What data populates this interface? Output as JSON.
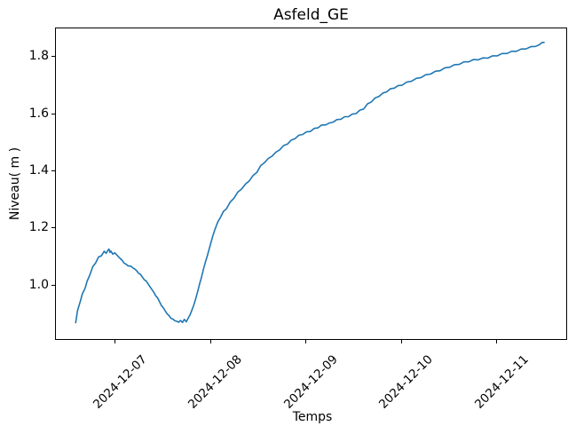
{
  "chart_data": {
    "type": "line",
    "title": "Asfeld_GE",
    "xlabel": "Temps",
    "ylabel": "Niveau( m )",
    "line_color": "#1f77b4",
    "background_color": "#ffffff",
    "axis_color": "#000000",
    "grid": false,
    "legend": null,
    "x_unit": "days offset from 2024-12-06 00:00",
    "xlim": [
      0.374,
      5.722
    ],
    "ylim": [
      0.813,
      1.9
    ],
    "x_ticks": [
      {
        "t": 1,
        "label": "2024-12-07"
      },
      {
        "t": 2,
        "label": "2024-12-08"
      },
      {
        "t": 3,
        "label": "2024-12-09"
      },
      {
        "t": 4,
        "label": "2024-12-10"
      },
      {
        "t": 5,
        "label": "2024-12-11"
      }
    ],
    "y_ticks": [
      {
        "v": 1.0,
        "label": "1.0"
      },
      {
        "v": 1.2,
        "label": "1.2"
      },
      {
        "v": 1.4,
        "label": "1.4"
      },
      {
        "v": 1.6,
        "label": "1.6"
      },
      {
        "v": 1.8,
        "label": "1.8"
      }
    ],
    "series": [
      {
        "name": "Niveau",
        "points": [
          [
            0.581,
            0.87
          ],
          [
            0.6,
            0.912
          ],
          [
            0.63,
            0.945
          ],
          [
            0.65,
            0.97
          ],
          [
            0.68,
            0.991
          ],
          [
            0.7,
            1.015
          ],
          [
            0.73,
            1.038
          ],
          [
            0.76,
            1.066
          ],
          [
            0.79,
            1.079
          ],
          [
            0.82,
            1.1
          ],
          [
            0.85,
            1.104
          ],
          [
            0.88,
            1.12
          ],
          [
            0.9,
            1.113
          ],
          [
            0.92,
            1.124
          ],
          [
            0.93,
            1.128
          ],
          [
            0.94,
            1.116
          ],
          [
            0.95,
            1.121
          ],
          [
            0.97,
            1.11
          ],
          [
            0.99,
            1.115
          ],
          [
            1.01,
            1.108
          ],
          [
            1.03,
            1.101
          ],
          [
            1.05,
            1.094
          ],
          [
            1.07,
            1.088
          ],
          [
            1.09,
            1.078
          ],
          [
            1.11,
            1.075
          ],
          [
            1.13,
            1.069
          ],
          [
            1.16,
            1.068
          ],
          [
            1.18,
            1.062
          ],
          [
            1.2,
            1.058
          ],
          [
            1.22,
            1.052
          ],
          [
            1.24,
            1.043
          ],
          [
            1.26,
            1.039
          ],
          [
            1.28,
            1.03
          ],
          [
            1.3,
            1.02
          ],
          [
            1.32,
            1.016
          ],
          [
            1.34,
            1.006
          ],
          [
            1.36,
            0.996
          ],
          [
            1.38,
            0.986
          ],
          [
            1.4,
            0.977
          ],
          [
            1.42,
            0.964
          ],
          [
            1.44,
            0.957
          ],
          [
            1.46,
            0.943
          ],
          [
            1.48,
            0.93
          ],
          [
            1.5,
            0.922
          ],
          [
            1.52,
            0.911
          ],
          [
            1.54,
            0.901
          ],
          [
            1.56,
            0.895
          ],
          [
            1.58,
            0.885
          ],
          [
            1.6,
            0.883
          ],
          [
            1.62,
            0.877
          ],
          [
            1.64,
            0.875
          ],
          [
            1.66,
            0.872
          ],
          [
            1.68,
            0.878
          ],
          [
            1.7,
            0.871
          ],
          [
            1.72,
            0.882
          ],
          [
            1.74,
            0.873
          ],
          [
            1.76,
            0.886
          ],
          [
            1.78,
            0.898
          ],
          [
            1.8,
            0.915
          ],
          [
            1.82,
            0.933
          ],
          [
            1.84,
            0.955
          ],
          [
            1.86,
            0.98
          ],
          [
            1.88,
            1.006
          ],
          [
            1.9,
            1.03
          ],
          [
            1.92,
            1.057
          ],
          [
            1.94,
            1.082
          ],
          [
            1.96,
            1.103
          ],
          [
            1.98,
            1.128
          ],
          [
            2.0,
            1.152
          ],
          [
            2.02,
            1.176
          ],
          [
            2.04,
            1.196
          ],
          [
            2.07,
            1.222
          ],
          [
            2.1,
            1.24
          ],
          [
            2.13,
            1.26
          ],
          [
            2.16,
            1.268
          ],
          [
            2.2,
            1.292
          ],
          [
            2.24,
            1.306
          ],
          [
            2.28,
            1.327
          ],
          [
            2.32,
            1.338
          ],
          [
            2.36,
            1.355
          ],
          [
            2.4,
            1.366
          ],
          [
            2.44,
            1.385
          ],
          [
            2.48,
            1.396
          ],
          [
            2.52,
            1.42
          ],
          [
            2.56,
            1.43
          ],
          [
            2.6,
            1.445
          ],
          [
            2.64,
            1.453
          ],
          [
            2.68,
            1.467
          ],
          [
            2.72,
            1.475
          ],
          [
            2.76,
            1.49
          ],
          [
            2.8,
            1.495
          ],
          [
            2.84,
            1.509
          ],
          [
            2.88,
            1.514
          ],
          [
            2.92,
            1.526
          ],
          [
            2.96,
            1.529
          ],
          [
            3.0,
            1.538
          ],
          [
            3.04,
            1.539
          ],
          [
            3.08,
            1.55
          ],
          [
            3.12,
            1.552
          ],
          [
            3.16,
            1.562
          ],
          [
            3.2,
            1.562
          ],
          [
            3.24,
            1.569
          ],
          [
            3.28,
            1.572
          ],
          [
            3.32,
            1.581
          ],
          [
            3.36,
            1.582
          ],
          [
            3.4,
            1.591
          ],
          [
            3.44,
            1.591
          ],
          [
            3.48,
            1.6
          ],
          [
            3.52,
            1.602
          ],
          [
            3.56,
            1.614
          ],
          [
            3.6,
            1.618
          ],
          [
            3.64,
            1.636
          ],
          [
            3.68,
            1.643
          ],
          [
            3.72,
            1.657
          ],
          [
            3.76,
            1.662
          ],
          [
            3.8,
            1.674
          ],
          [
            3.84,
            1.678
          ],
          [
            3.88,
            1.689
          ],
          [
            3.92,
            1.691
          ],
          [
            3.96,
            1.7
          ],
          [
            4.0,
            1.701
          ],
          [
            4.05,
            1.712
          ],
          [
            4.1,
            1.715
          ],
          [
            4.15,
            1.725
          ],
          [
            4.2,
            1.728
          ],
          [
            4.25,
            1.738
          ],
          [
            4.3,
            1.74
          ],
          [
            4.35,
            1.75
          ],
          [
            4.4,
            1.752
          ],
          [
            4.45,
            1.762
          ],
          [
            4.5,
            1.764
          ],
          [
            4.55,
            1.773
          ],
          [
            4.6,
            1.774
          ],
          [
            4.65,
            1.783
          ],
          [
            4.7,
            1.783
          ],
          [
            4.75,
            1.791
          ],
          [
            4.8,
            1.79
          ],
          [
            4.85,
            1.797
          ],
          [
            4.9,
            1.796
          ],
          [
            4.95,
            1.804
          ],
          [
            5.0,
            1.804
          ],
          [
            5.05,
            1.812
          ],
          [
            5.1,
            1.812
          ],
          [
            5.15,
            1.82
          ],
          [
            5.2,
            1.82
          ],
          [
            5.25,
            1.828
          ],
          [
            5.3,
            1.828
          ],
          [
            5.35,
            1.836
          ],
          [
            5.4,
            1.837
          ],
          [
            5.44,
            1.843
          ],
          [
            5.47,
            1.851
          ],
          [
            5.49,
            1.851
          ]
        ]
      }
    ]
  }
}
